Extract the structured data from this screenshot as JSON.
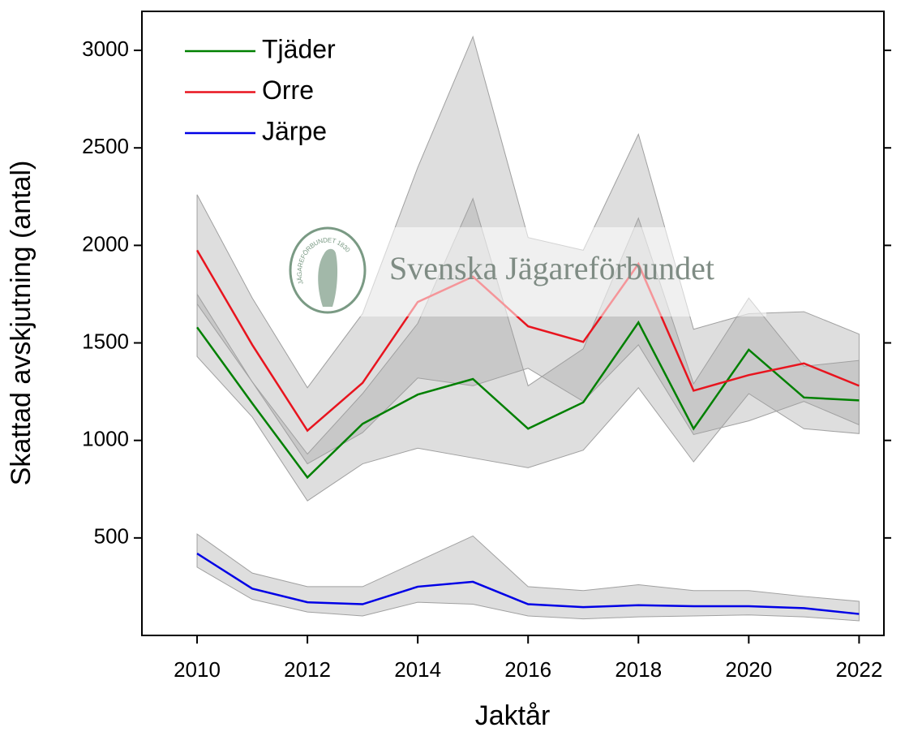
{
  "chart_data": {
    "type": "line",
    "x": [
      2010,
      2011,
      2012,
      2013,
      2014,
      2015,
      2016,
      2017,
      2018,
      2019,
      2020,
      2021,
      2022
    ],
    "series": [
      {
        "name": "Tjäder",
        "color": "#008000",
        "values": [
          1580,
          1190,
          810,
          1085,
          1235,
          1315,
          1060,
          1195,
          1605,
          1060,
          1465,
          1220,
          1205
        ],
        "lower": [
          1430,
          1120,
          690,
          880,
          960,
          910,
          860,
          950,
          1270,
          890,
          1240,
          1060,
          1035
        ],
        "upper": [
          1750,
          1300,
          930,
          1240,
          1600,
          2240,
          1280,
          1470,
          2140,
          1290,
          1730,
          1380,
          1410
        ]
      },
      {
        "name": "Orre",
        "color": "#e8141e",
        "values": [
          1975,
          1490,
          1050,
          1295,
          1710,
          1840,
          1585,
          1505,
          1905,
          1255,
          1335,
          1395,
          1280
        ],
        "lower": [
          1700,
          1300,
          880,
          1040,
          1320,
          1280,
          1370,
          1200,
          1490,
          1030,
          1100,
          1200,
          1080
        ],
        "upper": [
          2260,
          1730,
          1270,
          1650,
          2400,
          3070,
          2040,
          1975,
          2570,
          1570,
          1650,
          1660,
          1545
        ]
      },
      {
        "name": "Järpe",
        "color": "#0000e6",
        "values": [
          420,
          240,
          170,
          160,
          250,
          275,
          160,
          145,
          155,
          150,
          150,
          140,
          110
        ],
        "lower": [
          350,
          185,
          120,
          100,
          170,
          160,
          100,
          85,
          95,
          100,
          105,
          95,
          75
        ],
        "upper": [
          520,
          320,
          250,
          250,
          380,
          510,
          250,
          230,
          260,
          230,
          230,
          200,
          175
        ]
      }
    ],
    "band_color": "#a0a0a0",
    "xlabel": "Jaktår",
    "ylabel": "Skattad avskjutning (antal)",
    "xlim": [
      2009,
      2022.45
    ],
    "ylim": [
      0,
      3200
    ],
    "xticks": [
      2010,
      2012,
      2014,
      2016,
      2018,
      2020,
      2022
    ],
    "yticks": [
      500,
      1000,
      1500,
      2000,
      2500,
      3000
    ],
    "legend": "upper left",
    "watermark": "Svenska Jägareförbundet",
    "watermark_logo_text": "JÄGAREFÖRBUNDET 1830"
  }
}
